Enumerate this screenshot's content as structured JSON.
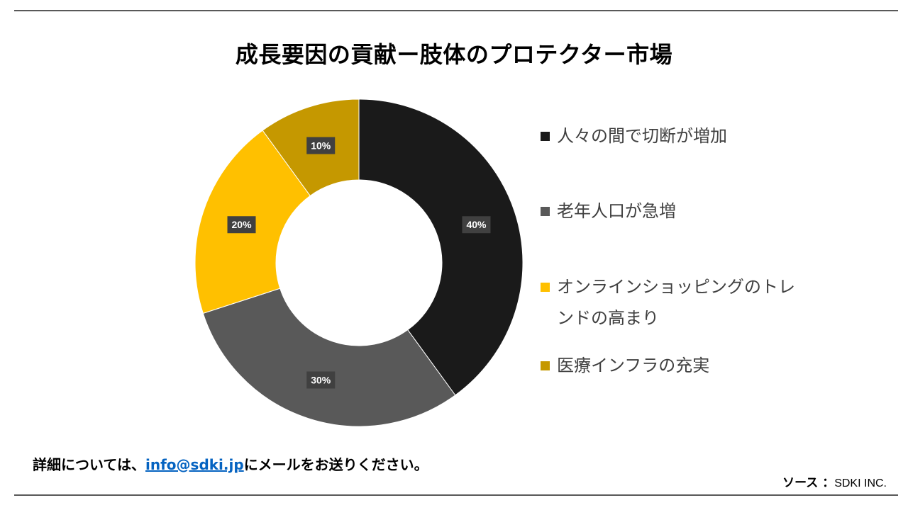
{
  "title": "成長要因の貢献ー肢体のプロテクター市場",
  "chart_data": {
    "type": "pie",
    "donut": true,
    "categories": [
      "人々の間で切断が増加",
      "老年人口が急増",
      "オンラインショッピングのトレンドの高まり",
      "医療インフラの充実"
    ],
    "values": [
      40,
      30,
      20,
      10
    ],
    "data_labels": [
      "40%",
      "30%",
      "20%",
      "10%"
    ],
    "colors": [
      "#1a1a1a",
      "#595959",
      "#ffc000",
      "#c59800"
    ],
    "legend_placement": "right"
  },
  "footer": {
    "before_link": "詳細については、",
    "link_text": "info@sdki.jp",
    "after_link": "にメールをお送りください。"
  },
  "source": {
    "label": "ソース ：",
    "value": "SDKI INC."
  }
}
